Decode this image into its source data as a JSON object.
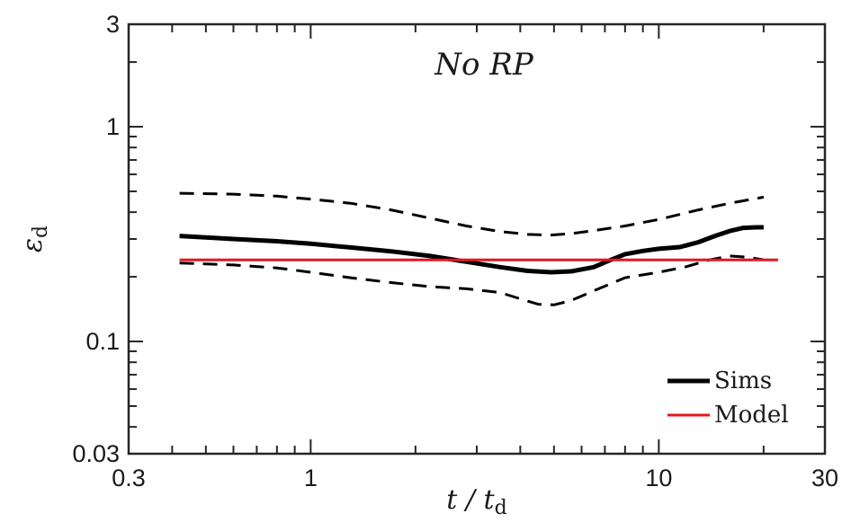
{
  "chart_data": {
    "type": "line",
    "title": "No RP",
    "xlabel": {
      "main": "t  /  t",
      "sub": "d"
    },
    "ylabel": {
      "main": "ε",
      "sub": "d"
    },
    "xscale": "log",
    "yscale": "log",
    "xlim": [
      0.3,
      30
    ],
    "ylim": [
      0.03,
      3
    ],
    "xticks": [
      {
        "value": 0.3,
        "label": "0.3"
      },
      {
        "value": 1,
        "label": "1"
      },
      {
        "value": 10,
        "label": "10"
      },
      {
        "value": 30,
        "label": "30"
      }
    ],
    "yticks": [
      {
        "value": 0.03,
        "label": "0.03"
      },
      {
        "value": 0.1,
        "label": "0.1"
      },
      {
        "value": 1,
        "label": "1"
      },
      {
        "value": 3,
        "label": "3"
      }
    ],
    "legend_position": "bottom-right",
    "series": [
      {
        "name": "Sims",
        "in_legend": true,
        "style": "solid",
        "color": "#000000",
        "x": [
          0.42,
          0.6,
          0.8,
          1.0,
          1.3,
          1.7,
          2.2,
          2.8,
          3.5,
          4.2,
          4.9,
          5.6,
          6.5,
          7.2,
          8.0,
          9.0,
          10.0,
          11.5,
          13.0,
          14.5,
          16.0,
          17.5,
          19.0,
          20.0
        ],
        "y": [
          0.31,
          0.3,
          0.293,
          0.285,
          0.274,
          0.263,
          0.25,
          0.235,
          0.222,
          0.213,
          0.21,
          0.212,
          0.222,
          0.238,
          0.255,
          0.264,
          0.27,
          0.275,
          0.29,
          0.31,
          0.327,
          0.338,
          0.34,
          0.34
        ]
      },
      {
        "name": "Sims upper bound",
        "in_legend": false,
        "style": "dashed",
        "color": "#000000",
        "x": [
          0.42,
          0.6,
          0.8,
          1.0,
          1.3,
          1.7,
          2.2,
          2.8,
          3.5,
          4.2,
          4.9,
          5.6,
          6.5,
          8.0,
          10.0,
          13.0,
          16.0,
          20.0
        ],
        "y": [
          0.49,
          0.485,
          0.475,
          0.46,
          0.44,
          0.41,
          0.375,
          0.345,
          0.325,
          0.315,
          0.313,
          0.318,
          0.328,
          0.345,
          0.37,
          0.41,
          0.44,
          0.47
        ]
      },
      {
        "name": "Sims lower bound",
        "in_legend": false,
        "style": "dashed",
        "color": "#000000",
        "x": [
          0.42,
          0.6,
          0.8,
          1.0,
          1.3,
          1.7,
          2.2,
          2.8,
          3.5,
          4.0,
          4.5,
          5.0,
          5.6,
          6.5,
          8.0,
          10.0,
          12.0,
          14.0,
          16.0,
          18.0,
          20.0
        ],
        "y": [
          0.232,
          0.227,
          0.22,
          0.21,
          0.198,
          0.188,
          0.18,
          0.176,
          0.169,
          0.158,
          0.149,
          0.148,
          0.155,
          0.172,
          0.198,
          0.21,
          0.223,
          0.24,
          0.25,
          0.247,
          0.24
        ]
      },
      {
        "name": "Model",
        "in_legend": true,
        "style": "solid",
        "color": "#e8151b",
        "x": [
          0.42,
          22
        ],
        "y": [
          0.24,
          0.24
        ]
      }
    ]
  }
}
